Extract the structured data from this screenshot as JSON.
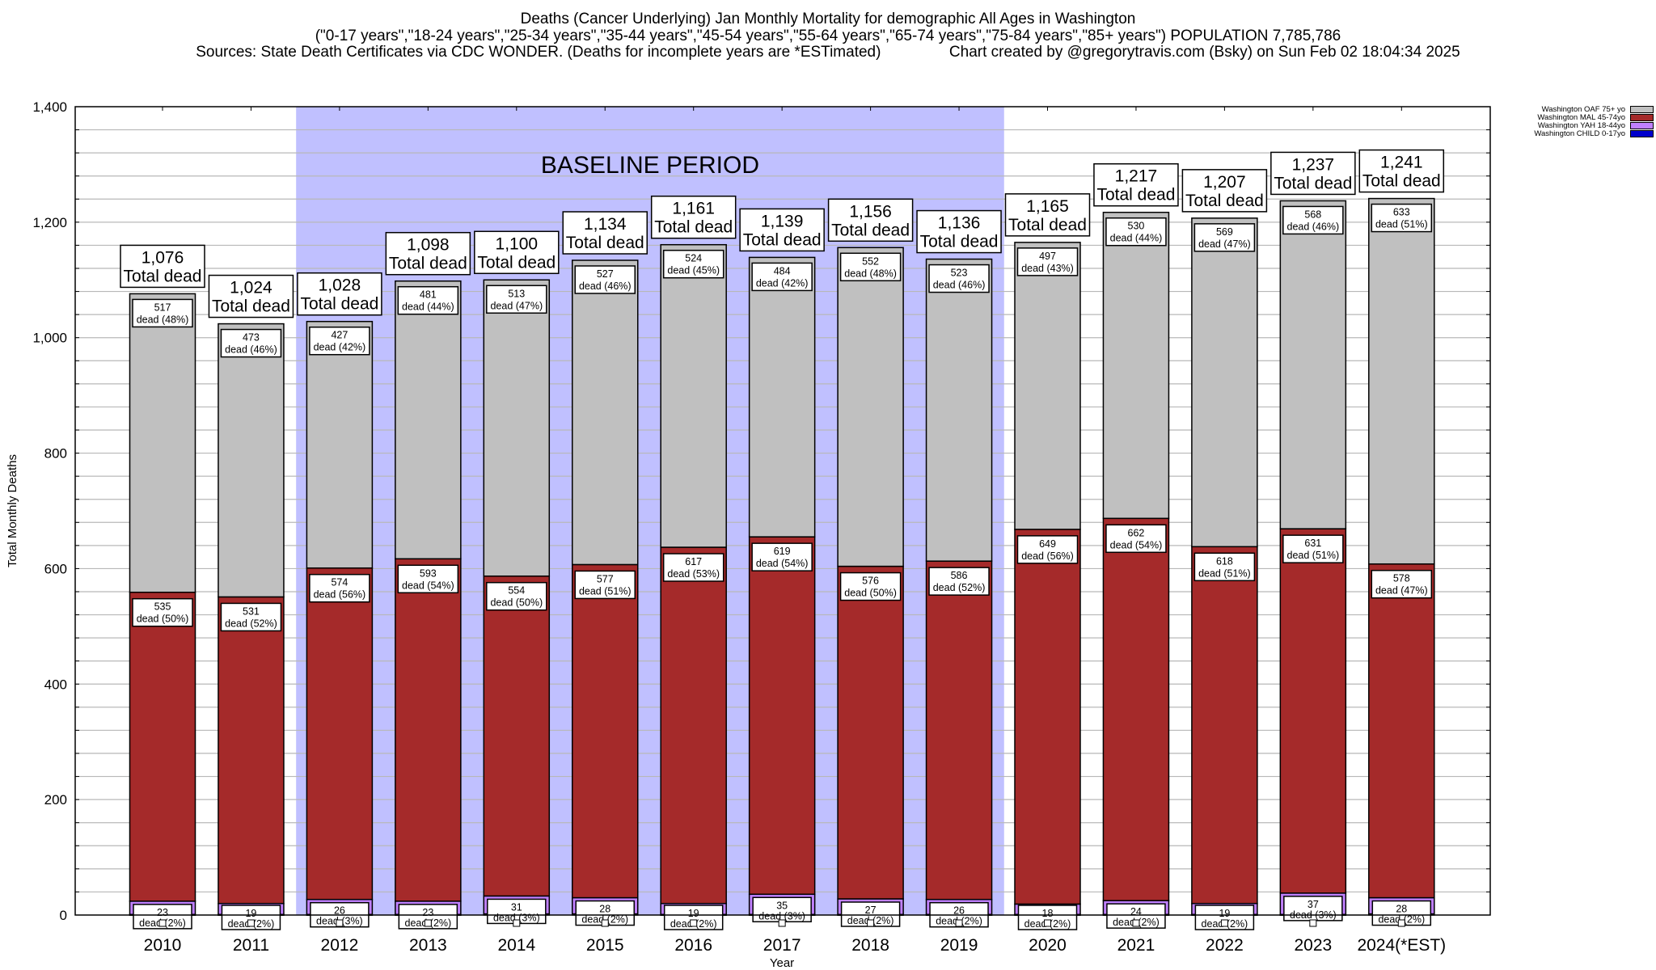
{
  "header": {
    "title": "Deaths (Cancer Underlying) Jan Monthly Mortality for demographic All Ages in Washington",
    "subtitle": "(\"0-17 years\",\"18-24 years\",\"25-34 years\",\"35-44 years\",\"45-54 years\",\"55-64 years\",\"65-74 years\",\"75-84 years\",\"85+ years\") POPULATION 7,785,786",
    "sources": "Sources: State Death Certificates via CDC WONDER. (Deaths for incomplete years are *ESTimated)",
    "credit": "Chart created by @gregorytravis.com (Bsky) on Sun Feb 02 18:04:34 2025"
  },
  "chart_data": {
    "type": "bar",
    "stacked": true,
    "title": "Deaths (Cancer Underlying) Jan Monthly Mortality for demographic All Ages in Washington",
    "xlabel": "Year",
    "ylabel": "Total Monthly Deaths",
    "ylim": [
      0,
      1400
    ],
    "yticks": [
      0,
      200,
      400,
      600,
      800,
      1000,
      1200,
      1400
    ],
    "ytick_labels": [
      "0",
      "200",
      "400",
      "600",
      "800",
      "1,000",
      "1,200",
      "1,400"
    ],
    "grid": true,
    "legend_position": "top-right",
    "annotation": {
      "text": "BASELINE PERIOD",
      "from": "2012",
      "to": "2019",
      "color": "#c0c0ff"
    },
    "categories": [
      "2010",
      "2011",
      "2012",
      "2013",
      "2014",
      "2015",
      "2016",
      "2017",
      "2018",
      "2019",
      "2020",
      "2021",
      "2022",
      "2023",
      "2024(*EST)"
    ],
    "totals": [
      1076,
      1024,
      1028,
      1098,
      1100,
      1134,
      1161,
      1139,
      1156,
      1136,
      1165,
      1217,
      1207,
      1237,
      1241
    ],
    "total_label_suffix": "Total dead",
    "series": [
      {
        "name": "Washington CHILD 0-17yo",
        "color": "#0000cc",
        "values": [
          1,
          1,
          1,
          1,
          2,
          2,
          1,
          1,
          1,
          1,
          1,
          1,
          1,
          1,
          2
        ]
      },
      {
        "name": "Washington YAH 18-44yo",
        "color": "#c080ff",
        "values": [
          23,
          19,
          26,
          23,
          31,
          28,
          19,
          35,
          27,
          26,
          18,
          24,
          19,
          37,
          28
        ],
        "labels": [
          "23 dead (2%)",
          "19 dead (2%)",
          "26 dead (3%)",
          "23 dead (2%)",
          "31 dead (3%)",
          "28 dead (2%)",
          "19 dead (2%)",
          "35 dead (3%)",
          "27 dead (2%)",
          "26 dead (2%)",
          "18 dead (2%)",
          "24 dead (2%)",
          "19 dead (2%)",
          "37 dead (3%)",
          "28 dead (2%)"
        ]
      },
      {
        "name": "Washington MAL 45-74yo",
        "color": "#a52a2a",
        "values": [
          535,
          531,
          574,
          593,
          554,
          577,
          617,
          619,
          576,
          586,
          649,
          662,
          618,
          631,
          578
        ],
        "labels": [
          "535 dead (50%)",
          "531 dead (52%)",
          "574 dead (56%)",
          "593 dead (54%)",
          "554 dead (50%)",
          "577 dead (51%)",
          "617 dead (53%)",
          "619 dead (54%)",
          "576 dead (50%)",
          "586 dead (52%)",
          "649 dead (56%)",
          "662 dead (54%)",
          "618 dead (51%)",
          "631 dead (51%)",
          "578 dead (47%)"
        ]
      },
      {
        "name": "Washington OAF 75+ yo",
        "color": "#c0c0c0",
        "values": [
          517,
          473,
          427,
          481,
          513,
          527,
          524,
          484,
          552,
          523,
          497,
          530,
          569,
          568,
          633
        ],
        "labels": [
          "517 dead (48%)",
          "473 dead (46%)",
          "427 dead (42%)",
          "481 dead (44%)",
          "513 dead (47%)",
          "527 dead (46%)",
          "524 dead (45%)",
          "484 dead (42%)",
          "552 dead (48%)",
          "523 dead (46%)",
          "497 dead (43%)",
          "530 dead (44%)",
          "569 dead (47%)",
          "568 dead (46%)",
          "633 dead (51%)"
        ]
      }
    ],
    "legend": [
      "Washington OAF 75+ yo",
      "Washington MAL 45-74yo",
      "Washington YAH 18-44yo",
      "Washington CHILD 0-17yo"
    ]
  }
}
